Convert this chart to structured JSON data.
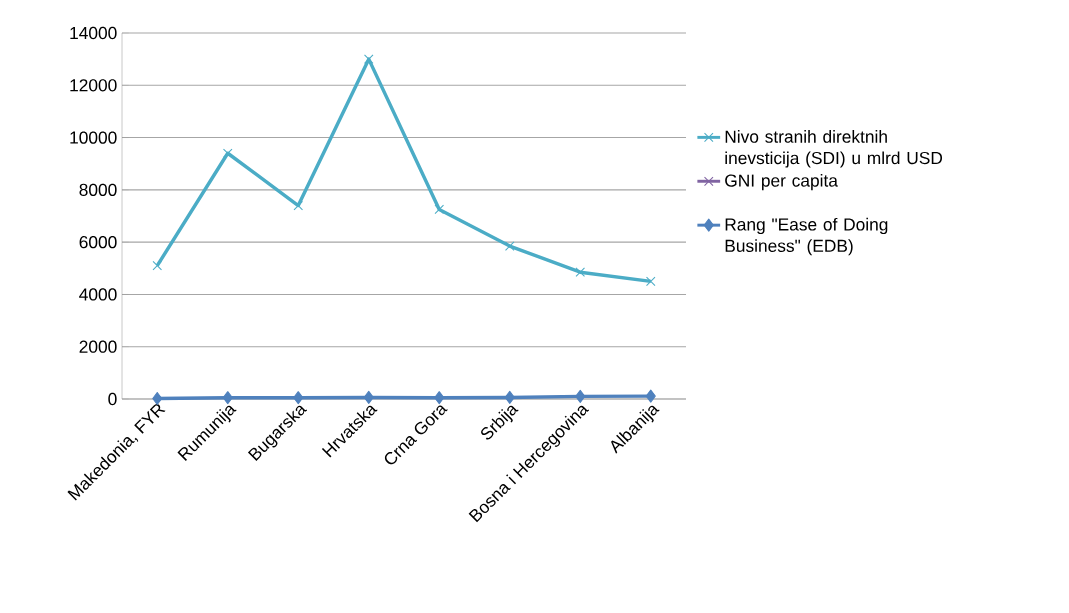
{
  "chart_data": {
    "type": "line",
    "categories": [
      "Makedonia, FYR",
      "Rumunija",
      "Bugarska",
      "Hrvatska",
      "Crna Gora",
      "Srbija",
      "Bosna i Hercegovina",
      "Albanija"
    ],
    "series": [
      {
        "name": "Nivo stranih direktnih inevsticija (SDI) u  mlrd USD",
        "color": "#4bacc6",
        "marker": "cross",
        "values": [
          5100,
          9400,
          7400,
          13000,
          7250,
          5850,
          4850,
          4500
        ]
      },
      {
        "name": "GNI per capita",
        "color": "#8064a2",
        "marker": "cross",
        "values": [
          null,
          null,
          null,
          null,
          null,
          null,
          null,
          null
        ]
      },
      {
        "name": "Rang \"Ease of Doing Business\" (EDB)",
        "color": "#4f81bd",
        "marker": "diamond",
        "values": [
          20,
          50,
          50,
          60,
          50,
          60,
          100,
          110
        ]
      }
    ],
    "ylim": [
      0,
      14000
    ],
    "yticks": [
      0,
      2000,
      4000,
      6000,
      8000,
      10000,
      12000,
      14000
    ],
    "grid": "y",
    "legend": "right"
  }
}
